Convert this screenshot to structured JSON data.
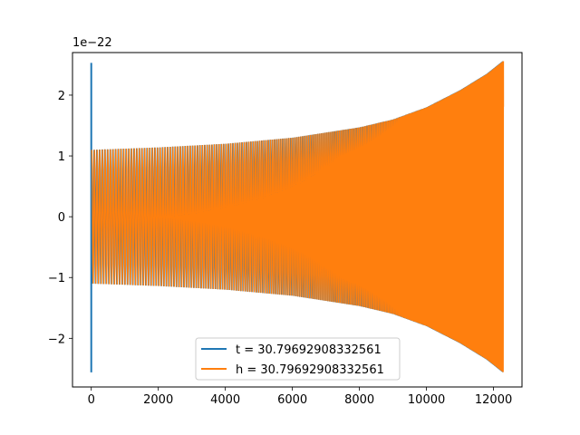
{
  "chart_data": {
    "type": "line",
    "y_offset_label": "1e−22",
    "xlim": [
      -560,
      12850
    ],
    "ylim": [
      -2.8,
      2.7
    ],
    "x_ticks": [
      0,
      2000,
      4000,
      6000,
      8000,
      10000,
      12000
    ],
    "x_tick_labels": [
      "0",
      "2000",
      "4000",
      "6000",
      "8000",
      "10000",
      "12000"
    ],
    "y_ticks": [
      -2,
      -1,
      0,
      1,
      2
    ],
    "y_tick_labels": [
      "−2",
      "−1",
      "0",
      "1",
      "2"
    ],
    "legend_position": "lower center",
    "series": [
      {
        "name": "t = 30.79692908332561",
        "color": "#1f77b4",
        "description_points": [
          [
            0,
            2.53
          ],
          [
            0,
            -2.56
          ]
        ]
      },
      {
        "name": "h = 30.79692908332561",
        "color": "#ff7f0e"
      }
    ],
    "signal": {
      "x_start": 0,
      "x_end": 12280,
      "envelope": [
        [
          0,
          1.1
        ],
        [
          2000,
          1.14
        ],
        [
          4000,
          1.2
        ],
        [
          6000,
          1.3
        ],
        [
          8000,
          1.47
        ],
        [
          9000,
          1.6
        ],
        [
          10000,
          1.8
        ],
        [
          11000,
          2.08
        ],
        [
          11800,
          2.35
        ],
        [
          12280,
          2.56
        ]
      ],
      "cycles_start_period": 80,
      "cycles_end_period": 15
    }
  }
}
